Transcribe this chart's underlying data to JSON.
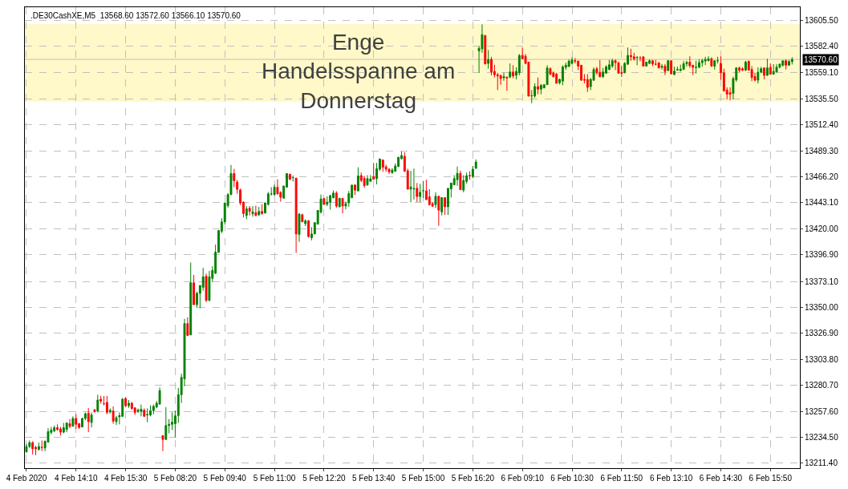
{
  "chart_data": {
    "type": "candlestick",
    "title": ".DE30CashXE,M5  13568.60 13572.60 13566.10 13570.60",
    "annotations": [
      "Enge\nHandelsspanne am\nDonnerstag"
    ],
    "categories": [
      "4 Feb 2020",
      null,
      null,
      null,
      null,
      null,
      null,
      null,
      null,
      null,
      null,
      null,
      null,
      null,
      null,
      null,
      "4 Feb 14:10",
      null,
      null,
      null,
      null,
      null,
      null,
      null,
      null,
      null,
      null,
      null,
      null,
      null,
      null,
      null,
      "4 Feb 15:30",
      null,
      null,
      null,
      null,
      null,
      null,
      null,
      null,
      null,
      null,
      null,
      null,
      null,
      null,
      null,
      "5 Feb 08:20",
      null,
      null,
      null,
      null,
      null,
      null,
      null,
      null,
      null,
      null,
      null,
      null,
      null,
      null,
      null,
      "5 Feb 09:40",
      null,
      null,
      null,
      null,
      null,
      null,
      null,
      null,
      null,
      null,
      null,
      null,
      null,
      null,
      null,
      "5 Feb 11:00",
      null,
      null,
      null,
      null,
      null,
      null,
      null,
      null,
      null,
      null,
      null,
      null,
      null,
      null,
      null,
      "5 Feb 12:20",
      null,
      null,
      null,
      null,
      null,
      null,
      null,
      null,
      null,
      null,
      null,
      null,
      null,
      null,
      null,
      "5 Feb 13:40",
      null,
      null,
      null,
      null,
      null,
      null,
      null,
      null,
      null,
      null,
      null,
      null,
      null,
      null,
      null,
      "5 Feb 15:00",
      null,
      null,
      null,
      null,
      null,
      null,
      null,
      null,
      null,
      null,
      null,
      null,
      null,
      null,
      null,
      "5 Feb 16:20",
      null,
      null,
      null,
      null,
      null,
      null,
      null,
      null,
      null,
      null,
      null,
      null,
      null,
      null,
      null,
      "6 Feb 09:10",
      null,
      null,
      null,
      null,
      null,
      null,
      null,
      null,
      null,
      null,
      null,
      null,
      null,
      null,
      null,
      "6 Feb 10:30",
      null,
      null,
      null,
      null,
      null,
      null,
      null,
      null,
      null,
      null,
      null,
      null,
      null,
      null,
      null,
      "6 Feb 11:50",
      null,
      null,
      null,
      null,
      null,
      null,
      null,
      null,
      null,
      null,
      null,
      null,
      null,
      null,
      null,
      "6 Feb 13:10",
      null,
      null,
      null,
      null,
      null,
      null,
      null,
      null,
      null,
      null,
      null,
      null,
      null,
      null,
      null,
      "6 Feb 14:30",
      null,
      null,
      null,
      null,
      null,
      null,
      null,
      null,
      null,
      null,
      null,
      null,
      null,
      null,
      null,
      "6 Feb 15:50",
      null,
      null,
      null,
      null,
      null,
      null,
      null
    ],
    "ohlc": [
      [
        13221.5,
        13228.5,
        13220.8,
        13226.2
      ],
      [
        13226.2,
        13231.6,
        13225.0,
        13229.7
      ],
      [
        13229.7,
        13230.9,
        13219.2,
        13224.3
      ],
      [
        13225.5,
        13226.9,
        13218.5,
        13224.3
      ],
      [
        13223.8,
        13229.7,
        13222.7,
        13226.2
      ],
      [
        13225.5,
        13231.6,
        13222.2,
        13225.5
      ],
      [
        13225.0,
        13231.6,
        13222.2,
        13230.9
      ],
      [
        13230.2,
        13242.6,
        13229.7,
        13239.5
      ],
      [
        13238.8,
        13243.7,
        13237.0,
        13240.9
      ],
      [
        13240.2,
        13244.9,
        13239.0,
        13243.0
      ],
      [
        13243.0,
        13246.0,
        13240.2,
        13241.4
      ],
      [
        13241.9,
        13243.7,
        13236.0,
        13239.0
      ],
      [
        13239.0,
        13247.2,
        13238.0,
        13243.0
      ],
      [
        13241.4,
        13247.2,
        13239.0,
        13247.2
      ],
      [
        13246.5,
        13250.7,
        13242.6,
        13244.2
      ],
      [
        13244.4,
        13253.1,
        13243.7,
        13251.2
      ],
      [
        13251.2,
        13254.9,
        13241.9,
        13246.0
      ],
      [
        13246.5,
        13247.2,
        13241.9,
        13243.2
      ],
      [
        13243.7,
        13251.9,
        13243.2,
        13251.2
      ],
      [
        13251.2,
        13256.6,
        13249.6,
        13255.4
      ],
      [
        13255.9,
        13260.5,
        13239.0,
        13248.4
      ],
      [
        13247.7,
        13256.6,
        13243.2,
        13254.3
      ],
      [
        13258.9,
        13259.6,
        13256.6,
        13257.1
      ],
      [
        13257.8,
        13272.3,
        13256.6,
        13267.6
      ],
      [
        13268.3,
        13271.3,
        13264.3,
        13266.7
      ],
      [
        13264.3,
        13271.1,
        13262.9,
        13264.3
      ],
      [
        13265.5,
        13271.3,
        13254.9,
        13256.6
      ],
      [
        13257.1,
        13260.1,
        13255.4,
        13258.5
      ],
      [
        13257.8,
        13262.0,
        13246.5,
        13248.9
      ],
      [
        13248.4,
        13253.6,
        13245.4,
        13251.9
      ],
      [
        13252.6,
        13256.6,
        13246.0,
        13253.8
      ],
      [
        13253.1,
        13269.5,
        13252.6,
        13268.3
      ],
      [
        13269.0,
        13270.0,
        13261.3,
        13262.5
      ],
      [
        13262.5,
        13267.6,
        13260.6,
        13264.8
      ],
      [
        13264.8,
        13266.0,
        13258.9,
        13260.1
      ],
      [
        13260.6,
        13261.3,
        13254.3,
        13256.6
      ],
      [
        13257.3,
        13260.1,
        13256.1,
        13258.7
      ],
      [
        13257.5,
        13263.6,
        13253.1,
        13259.4
      ],
      [
        13258.5,
        13260.1,
        13252.6,
        13253.1
      ],
      [
        13254.3,
        13260.1,
        13247.9,
        13254.8
      ],
      [
        13254.3,
        13262.9,
        13253.1,
        13258.2
      ],
      [
        13258.2,
        13263.6,
        13255.0,
        13262.0
      ],
      [
        13261.3,
        13266.7,
        13260.6,
        13264.8
      ],
      [
        13264.0,
        13278.8,
        13263.6,
        13276.0
      ],
      [
        13236.0,
        13236.0,
        13222.2,
        13232.5
      ],
      [
        13232.5,
        13261.3,
        13232.5,
        13244.9
      ],
      [
        13244.9,
        13250.7,
        13237.9,
        13246.0
      ],
      [
        13246.0,
        13256.6,
        13240.9,
        13247.9
      ],
      [
        13246.5,
        13258.2,
        13234.4,
        13253.6
      ],
      [
        13253.8,
        13278.4,
        13247.2,
        13272.3
      ],
      [
        13272.3,
        13291.0,
        13265.0,
        13287.7
      ],
      [
        13286.5,
        13339.8,
        13279.9,
        13335.6
      ],
      [
        13335.6,
        13341.2,
        13324.4,
        13325.0
      ],
      [
        13325.5,
        13389.9,
        13325.5,
        13371.9
      ],
      [
        13371.9,
        13378.9,
        13352.4,
        13352.4
      ],
      [
        13352.4,
        13364.1,
        13349.6,
        13362.5
      ],
      [
        13362.5,
        13369.5,
        13349.2,
        13369.5
      ],
      [
        13367.9,
        13385.2,
        13364.8,
        13377.2
      ],
      [
        13377.7,
        13380.0,
        13354.8,
        13356.2
      ],
      [
        13356.2,
        13382.4,
        13355.5,
        13377.2
      ],
      [
        13375.8,
        13386.6,
        13372.6,
        13382.9
      ],
      [
        13380.5,
        13405.8,
        13379.6,
        13399.2
      ],
      [
        13399.0,
        13418.4,
        13398.5,
        13418.4
      ],
      [
        13417.7,
        13429.3,
        13416.0,
        13426.1
      ],
      [
        13426.1,
        13442.9,
        13424.0,
        13442.9
      ],
      [
        13440.5,
        13451.7,
        13438.7,
        13450.3
      ],
      [
        13450.3,
        13476.7,
        13449.9,
        13469.0
      ],
      [
        13469.0,
        13473.2,
        13456.9,
        13462.7
      ],
      [
        13461.5,
        13463.4,
        13451.0,
        13455.0
      ],
      [
        13454.5,
        13455.7,
        13441.0,
        13442.9
      ],
      [
        13443.6,
        13444.1,
        13430.0,
        13433.5
      ],
      [
        13431.7,
        13440.1,
        13428.4,
        13437.7
      ],
      [
        13438.2,
        13440.1,
        13431.7,
        13435.4
      ],
      [
        13433.3,
        13440.1,
        13430.7,
        13435.0
      ],
      [
        13434.2,
        13440.5,
        13431.2,
        13431.7
      ],
      [
        13432.4,
        13439.4,
        13431.2,
        13435.4
      ],
      [
        13435.4,
        13441.7,
        13432.4,
        13433.5
      ],
      [
        13434.0,
        13443.3,
        13433.5,
        13442.9
      ],
      [
        13441.7,
        13452.6,
        13440.5,
        13451.0
      ],
      [
        13451.0,
        13456.9,
        13449.4,
        13451.0
      ],
      [
        13450.3,
        13459.2,
        13449.4,
        13456.9
      ],
      [
        13456.9,
        13463.9,
        13450.3,
        13451.0
      ],
      [
        13452.2,
        13453.4,
        13444.0,
        13448.0
      ],
      [
        13447.1,
        13458.0,
        13447.1,
        13458.0
      ],
      [
        13456.9,
        13469.0,
        13456.9,
        13469.0
      ],
      [
        13468.5,
        13468.5,
        13463.4,
        13463.9
      ],
      [
        13465.5,
        13467.4,
        13462.0,
        13465.5
      ],
      [
        13465.0,
        13465.0,
        13398.5,
        13415.3
      ],
      [
        13414.9,
        13434.0,
        13408.3,
        13433.0
      ],
      [
        13432.4,
        13433.5,
        13426.1,
        13426.1
      ],
      [
        13424.4,
        13428.4,
        13422.3,
        13427.0
      ],
      [
        13427.0,
        13427.7,
        13412.0,
        13413.0
      ],
      [
        13412.0,
        13421.4,
        13409.6,
        13415.3
      ],
      [
        13415.3,
        13425.4,
        13415.3,
        13425.4
      ],
      [
        13424.0,
        13436.3,
        13424.0,
        13436.3
      ],
      [
        13434.7,
        13450.3,
        13433.5,
        13446.4
      ],
      [
        13446.8,
        13447.5,
        13441.0,
        13441.7
      ],
      [
        13441.7,
        13448.7,
        13440.1,
        13443.6
      ],
      [
        13443.6,
        13450.3,
        13437.0,
        13449.4
      ],
      [
        13447.5,
        13454.0,
        13447.0,
        13451.7
      ],
      [
        13451.7,
        13453.4,
        13438.7,
        13440.1
      ],
      [
        13439.4,
        13447.5,
        13439.4,
        13447.0
      ],
      [
        13447.0,
        13447.0,
        13433.7,
        13440.2
      ],
      [
        13440.2,
        13444.2,
        13437.2,
        13442.3
      ],
      [
        13443.0,
        13453.6,
        13439.5,
        13451.2
      ],
      [
        13447.7,
        13459.4,
        13447.0,
        13458.7
      ],
      [
        13458.9,
        13458.9,
        13450.0,
        13454.3
      ],
      [
        13453.6,
        13474.6,
        13453.6,
        13466.9
      ],
      [
        13467.3,
        13469.9,
        13461.3,
        13462.9
      ],
      [
        13464.8,
        13466.9,
        13456.4,
        13458.2
      ],
      [
        13458.9,
        13467.6,
        13458.2,
        13464.5
      ],
      [
        13462.1,
        13467.6,
        13462.1,
        13464.4
      ],
      [
        13466.4,
        13478.5,
        13463.6,
        13464.0
      ],
      [
        13464.5,
        13478.5,
        13459.4,
        13473.4
      ],
      [
        13472.9,
        13482.1,
        13471.5,
        13482.1
      ],
      [
        13481.1,
        13481.6,
        13470.6,
        13474.6
      ],
      [
        13475.0,
        13476.9,
        13470.6,
        13472.9
      ],
      [
        13472.9,
        13473.9,
        13468.5,
        13470.6
      ],
      [
        13469.7,
        13473.9,
        13469.0,
        13472.2
      ],
      [
        13471.1,
        13478.1,
        13470.6,
        13475.8
      ],
      [
        13475.3,
        13483.9,
        13474.9,
        13483.5
      ],
      [
        13482.3,
        13488.6,
        13481.6,
        13485.1
      ],
      [
        13484.4,
        13487.9,
        13470.6,
        13471.1
      ],
      [
        13471.5,
        13473.4,
        13454.8,
        13455.2
      ],
      [
        13455.2,
        13471.5,
        13443.5,
        13457.1
      ],
      [
        13455.2,
        13473.4,
        13446.0,
        13455.7
      ],
      [
        13456.0,
        13460.6,
        13443.7,
        13448.6
      ],
      [
        13448.6,
        13459.9,
        13443.7,
        13452.4
      ],
      [
        13453.8,
        13462.2,
        13447.2,
        13453.8
      ],
      [
        13453.6,
        13463.6,
        13445.7,
        13445.9
      ],
      [
        13448.4,
        13455.2,
        13440.7,
        13441.4
      ],
      [
        13442.3,
        13443.5,
        13439.5,
        13440.0
      ],
      [
        13441.4,
        13452.4,
        13438.4,
        13448.9
      ],
      [
        13448.9,
        13448.9,
        13422.5,
        13436.5
      ],
      [
        13434.9,
        13447.7,
        13431.8,
        13447.7
      ],
      [
        13447.7,
        13447.7,
        13432.2,
        13439.5
      ],
      [
        13439.5,
        13455.9,
        13432.2,
        13455.9
      ],
      [
        13455.4,
        13460.6,
        13447.7,
        13460.6
      ],
      [
        13459.0,
        13467.6,
        13458.9,
        13464.5
      ],
      [
        13463.6,
        13475.3,
        13458.2,
        13469.2
      ],
      [
        13469.2,
        13471.5,
        13454.7,
        13454.7
      ],
      [
        13454.3,
        13467.6,
        13452.4,
        13462.9
      ],
      [
        13462.1,
        13469.9,
        13460.0,
        13467.1
      ],
      [
        13467.4,
        13471.1,
        13463.6,
        13466.9
      ],
      [
        13466.4,
        13475.8,
        13464.8,
        13472.9
      ],
      [
        13473.9,
        13481.6,
        13472.9,
        13479.3
      ],
      [
        13578.1,
        13582.4,
        13558.7,
        13580.5
      ],
      [
        13580.0,
        13601.8,
        13576.5,
        13592.6
      ],
      [
        13591.9,
        13591.9,
        13566.5,
        13566.5
      ],
      [
        13567.0,
        13578.9,
        13562.3,
        13570.6
      ],
      [
        13570.6,
        13572.9,
        13556.4,
        13559.4
      ],
      [
        13559.9,
        13565.8,
        13554.5,
        13557.0
      ],
      [
        13557.0,
        13558.7,
        13543.3,
        13555.9
      ],
      [
        13556.4,
        13556.4,
        13548.0,
        13553.5
      ],
      [
        13554.2,
        13558.7,
        13551.6,
        13555.3
      ],
      [
        13554.9,
        13554.9,
        13542.6,
        13554.0
      ],
      [
        13554.9,
        13567.0,
        13553.8,
        13559.4
      ],
      [
        13559.4,
        13565.4,
        13553.8,
        13555.9
      ],
      [
        13556.4,
        13563.5,
        13552.8,
        13559.9
      ],
      [
        13558.7,
        13575.3,
        13556.4,
        13574.1
      ],
      [
        13574.1,
        13581.2,
        13570.6,
        13571.3
      ],
      [
        13573.4,
        13575.3,
        13566.3,
        13567.0
      ],
      [
        13568.2,
        13568.2,
        13537.9,
        13537.9
      ],
      [
        13538.1,
        13543.3,
        13531.6,
        13538.3
      ],
      [
        13538.1,
        13549.3,
        13536.5,
        13546.4
      ],
      [
        13546.4,
        13554.5,
        13539.6,
        13544.1
      ],
      [
        13544.1,
        13548.8,
        13539.6,
        13547.4
      ],
      [
        13545.2,
        13548.1,
        13545.2,
        13548.1
      ],
      [
        13548.1,
        13565.4,
        13548.1,
        13563.0
      ],
      [
        13562.3,
        13563.5,
        13556.4,
        13557.5
      ],
      [
        13558.7,
        13559.9,
        13554.5,
        13555.2
      ],
      [
        13557.5,
        13558.7,
        13549.3,
        13549.3
      ],
      [
        13549.8,
        13553.5,
        13548.3,
        13552.8
      ],
      [
        13551.3,
        13565.4,
        13547.6,
        13563.9
      ],
      [
        13563.5,
        13567.7,
        13561.3,
        13565.4
      ],
      [
        13564.2,
        13570.6,
        13564.2,
        13568.9
      ],
      [
        13567.0,
        13572.5,
        13566.0,
        13570.1
      ],
      [
        13569.4,
        13571.7,
        13567.0,
        13569.1
      ],
      [
        13569.1,
        13569.4,
        13561.1,
        13564.6
      ],
      [
        13565.4,
        13565.4,
        13551.4,
        13552.1
      ],
      [
        13552.8,
        13557.5,
        13549.3,
        13552.1
      ],
      [
        13552.8,
        13557.5,
        13541.7,
        13545.7
      ],
      [
        13546.4,
        13554.0,
        13543.3,
        13552.8
      ],
      [
        13552.1,
        13563.5,
        13551.4,
        13561.6
      ],
      [
        13562.3,
        13564.0,
        13556.9,
        13558.7
      ],
      [
        13559.2,
        13570.1,
        13554.5,
        13555.2
      ],
      [
        13555.2,
        13563.0,
        13554.0,
        13559.4
      ],
      [
        13558.3,
        13565.4,
        13558.0,
        13564.0
      ],
      [
        13561.6,
        13570.1,
        13560.9,
        13565.8
      ],
      [
        13564.6,
        13571.1,
        13563.0,
        13569.4
      ],
      [
        13569.4,
        13570.6,
        13561.1,
        13567.7
      ],
      [
        13567.7,
        13568.2,
        13558.3,
        13558.3
      ],
      [
        13558.7,
        13564.6,
        13555.0,
        13558.3
      ],
      [
        13558.7,
        13568.2,
        13558.3,
        13567.0
      ],
      [
        13566.3,
        13581.2,
        13565.6,
        13574.1
      ],
      [
        13574.1,
        13580.0,
        13569.4,
        13572.9
      ],
      [
        13572.9,
        13576.5,
        13569.4,
        13571.1
      ],
      [
        13572.2,
        13573.0,
        13565.4,
        13572.6
      ],
      [
        13571.8,
        13573.4,
        13568.9,
        13571.8
      ],
      [
        13572.9,
        13572.9,
        13564.6,
        13564.6
      ],
      [
        13564.6,
        13568.2,
        13564.6,
        13568.2
      ],
      [
        13567.0,
        13570.6,
        13566.3,
        13569.4
      ],
      [
        13569.4,
        13570.1,
        13564.6,
        13566.5
      ],
      [
        13566.3,
        13570.1,
        13565.2,
        13566.3
      ],
      [
        13567.7,
        13567.7,
        13563.0,
        13563.0
      ],
      [
        13563.5,
        13566.5,
        13561.6,
        13564.6
      ],
      [
        13564.6,
        13566.5,
        13556.6,
        13559.9
      ],
      [
        13560.6,
        13570.1,
        13560.6,
        13569.4
      ],
      [
        13569.4,
        13569.4,
        13557.1,
        13557.8
      ],
      [
        13557.1,
        13564.2,
        13556.6,
        13560.2
      ],
      [
        13561.1,
        13564.2,
        13560.6,
        13561.6
      ],
      [
        13560.6,
        13565.9,
        13559.9,
        13561.8
      ],
      [
        13561.6,
        13569.1,
        13561.6,
        13566.7
      ],
      [
        13566.7,
        13569.4,
        13564.2,
        13567.9
      ],
      [
        13568.2,
        13573.4,
        13563.0,
        13564.9
      ],
      [
        13565.4,
        13565.4,
        13556.6,
        13563.5
      ],
      [
        13563.4,
        13569.4,
        13558.0,
        13563.6
      ],
      [
        13563.5,
        13570.6,
        13563.0,
        13567.7
      ],
      [
        13567.7,
        13571.1,
        13564.0,
        13569.4
      ],
      [
        13569.1,
        13572.9,
        13565.6,
        13570.6
      ],
      [
        13569.4,
        13573.4,
        13568.9,
        13571.1
      ],
      [
        13571.1,
        13572.5,
        13564.0,
        13564.6
      ],
      [
        13564.6,
        13569.4,
        13561.6,
        13569.4
      ],
      [
        13569.4,
        13572.9,
        13567.0,
        13569.4
      ],
      [
        13567.0,
        13573.4,
        13552.4,
        13558.7
      ],
      [
        13558.7,
        13562.3,
        13542.0,
        13542.6
      ],
      [
        13543.3,
        13545.7,
        13535.0,
        13539.6
      ],
      [
        13541.0,
        13545.7,
        13534.2,
        13539.6
      ],
      [
        13540.4,
        13555.2,
        13535.0,
        13553.5
      ],
      [
        13552.4,
        13563.7,
        13550.7,
        13563.0
      ],
      [
        13563.0,
        13564.2,
        13559.0,
        13560.9
      ],
      [
        13562.3,
        13563.5,
        13560.2,
        13561.1
      ],
      [
        13561.1,
        13569.4,
        13560.2,
        13568.2
      ],
      [
        13568.9,
        13569.6,
        13560.6,
        13561.1
      ],
      [
        13561.6,
        13564.6,
        13551.2,
        13554.5
      ],
      [
        13555.4,
        13558.7,
        13550.9,
        13552.1
      ],
      [
        13552.1,
        13563.5,
        13549.1,
        13559.2
      ],
      [
        13559.2,
        13564.0,
        13558.3,
        13562.3
      ],
      [
        13563.0,
        13563.5,
        13552.8,
        13556.4
      ],
      [
        13556.4,
        13571.1,
        13555.9,
        13563.0
      ],
      [
        13563.5,
        13567.0,
        13556.9,
        13557.5
      ],
      [
        13557.5,
        13566.3,
        13556.9,
        13559.9
      ],
      [
        13559.4,
        13566.3,
        13559.0,
        13563.7
      ],
      [
        13563.7,
        13567.0,
        13562.6,
        13566.3
      ],
      [
        13565.4,
        13569.4,
        13564.2,
        13569.4
      ],
      [
        13569.4,
        13570.6,
        13561.6,
        13565.4
      ],
      [
        13565.4,
        13570.1,
        13564.9,
        13568.7
      ],
      [
        13568.6,
        13572.6,
        13566.1,
        13570.6
      ]
    ],
    "ylim": [
      13207,
      13617
    ],
    "yticks": [
      {
        "value": 13211.4,
        "label": "13211.40"
      },
      {
        "value": 13234.5,
        "label": "13234.50"
      },
      {
        "value": 13257.6,
        "label": "13257.60"
      },
      {
        "value": 13280.7,
        "label": "13280.70"
      },
      {
        "value": 13303.8,
        "label": "13303.80"
      },
      {
        "value": 13326.9,
        "label": "13326.90"
      },
      {
        "value": 13350.0,
        "label": "13350.00"
      },
      {
        "value": 13373.1,
        "label": "13373.10"
      },
      {
        "value": 13396.9,
        "label": "13396.90"
      },
      {
        "value": 13420.0,
        "label": "13420.00"
      },
      {
        "value": 13443.1,
        "label": "13443.10"
      },
      {
        "value": 13466.2,
        "label": "13466.20"
      },
      {
        "value": 13489.3,
        "label": "13489.30"
      },
      {
        "value": 13512.4,
        "label": "13512.40"
      },
      {
        "value": 13535.5,
        "label": "13535.50"
      },
      {
        "value": 13559.1,
        "label": "13559.10"
      },
      {
        "value": 13582.4,
        "label": "13582.40"
      },
      {
        "value": 13605.5,
        "label": "13605.50"
      }
    ],
    "ref_lines": [
      {
        "axis": "y",
        "value": 13570.6,
        "label": "13570.60",
        "color": "#c0c0c0"
      }
    ],
    "bands": [
      {
        "axis": "y",
        "from": 13533,
        "to": 13602,
        "color": "#fff8c8"
      }
    ],
    "grid": true
  }
}
